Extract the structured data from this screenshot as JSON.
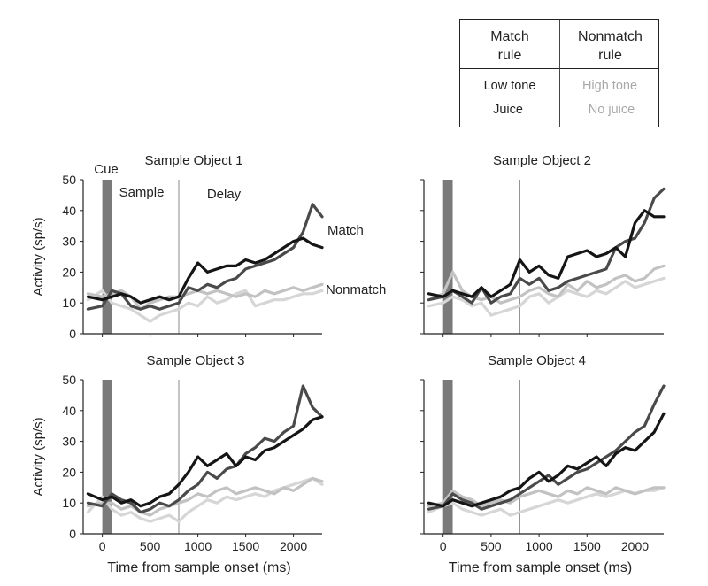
{
  "legend": {
    "headers": [
      [
        "Match",
        "rule"
      ],
      [
        "Nonmatch",
        "rule"
      ]
    ],
    "rows": [
      {
        "match": "Low tone",
        "nonmatch": "High tone"
      },
      {
        "match": "Juice",
        "nonmatch": "No juice"
      }
    ]
  },
  "colors": {
    "match_low_tone": "#4a4a4a",
    "match_juice": "#151515",
    "nonmatch_high_tone": "#c2c2c2",
    "nonmatch_no_juice": "#d6d6d6",
    "cue_bar": "#7a7a7a",
    "delay_line": "#888888"
  },
  "chart_data": {
    "type": "line",
    "xlabel": "Time from sample onset (ms)",
    "ylabel": "Activity (sp/s)",
    "xlim": [
      -200,
      2300
    ],
    "ylim": [
      0,
      50
    ],
    "xticks": [
      0,
      500,
      1000,
      1500,
      2000
    ],
    "yticks": [
      0,
      10,
      20,
      30,
      40,
      50
    ],
    "cue_interval_ms": [
      0,
      100
    ],
    "delay_onset_ms": 800,
    "epoch_labels": [
      "Cue",
      "Sample",
      "Delay"
    ],
    "series_labels": {
      "match": "Match",
      "nonmatch": "Nonmatch"
    },
    "x": [
      -150,
      0,
      100,
      200,
      300,
      400,
      500,
      600,
      700,
      800,
      900,
      1000,
      1100,
      1200,
      1300,
      1400,
      1500,
      1600,
      1700,
      1800,
      1900,
      2000,
      2100,
      2200,
      2300
    ],
    "panels": [
      {
        "title": "Sample Object 1",
        "series": [
          {
            "style": "match_juice",
            "values": [
              12,
              11,
              12,
              13,
              12,
              10,
              11,
              12,
              11,
              12,
              18,
              23,
              20,
              21,
              22,
              22,
              24,
              23,
              24,
              26,
              28,
              30,
              31,
              29,
              28
            ]
          },
          {
            "style": "match_low_tone",
            "values": [
              8,
              9,
              14,
              13,
              9,
              8,
              9,
              8,
              9,
              10,
              15,
              14,
              16,
              15,
              17,
              18,
              21,
              22,
              23,
              24,
              26,
              28,
              33,
              42,
              38
            ]
          },
          {
            "style": "nonmatch_high_tone",
            "values": [
              13,
              12,
              13,
              14,
              12,
              8,
              10,
              11,
              12,
              12,
              13,
              14,
              13,
              14,
              13,
              12,
              13,
              12,
              14,
              13,
              14,
              15,
              14,
              15,
              16
            ]
          },
          {
            "style": "nonmatch_no_juice",
            "values": [
              11,
              14,
              10,
              9,
              8,
              6,
              4,
              6,
              7,
              8,
              10,
              9,
              12,
              10,
              11,
              13,
              14,
              9,
              10,
              11,
              11,
              12,
              13,
              13,
              14
            ]
          }
        ]
      },
      {
        "title": "Sample Object 2",
        "series": [
          {
            "style": "match_juice",
            "values": [
              13,
              12,
              14,
              13,
              12,
              15,
              12,
              14,
              16,
              24,
              20,
              22,
              19,
              18,
              25,
              26,
              27,
              25,
              26,
              28,
              25,
              36,
              40,
              38,
              38
            ]
          },
          {
            "style": "match_low_tone",
            "values": [
              11,
              12,
              14,
              12,
              10,
              15,
              10,
              12,
              13,
              18,
              16,
              18,
              14,
              15,
              17,
              18,
              19,
              20,
              21,
              28,
              30,
              31,
              36,
              44,
              47
            ]
          },
          {
            "style": "nonmatch_high_tone",
            "values": [
              11,
              13,
              20,
              14,
              12,
              11,
              12,
              10,
              11,
              12,
              14,
              15,
              13,
              12,
              16,
              14,
              17,
              15,
              16,
              18,
              19,
              17,
              18,
              21,
              22
            ]
          },
          {
            "style": "nonmatch_no_juice",
            "values": [
              9,
              10,
              12,
              11,
              9,
              10,
              6,
              7,
              8,
              9,
              12,
              13,
              10,
              12,
              14,
              13,
              12,
              14,
              13,
              15,
              17,
              15,
              16,
              17,
              18
            ]
          }
        ]
      },
      {
        "title": "Sample Object 3",
        "series": [
          {
            "style": "match_juice",
            "values": [
              13,
              11,
              12,
              10,
              11,
              9,
              10,
              12,
              13,
              16,
              20,
              25,
              22,
              24,
              26,
              22,
              25,
              24,
              27,
              28,
              30,
              32,
              34,
              37,
              38
            ]
          },
          {
            "style": "match_low_tone",
            "values": [
              10,
              9,
              13,
              11,
              10,
              7,
              8,
              10,
              9,
              11,
              14,
              16,
              20,
              18,
              21,
              22,
              26,
              28,
              31,
              30,
              33,
              35,
              48,
              41,
              38
            ]
          },
          {
            "style": "nonmatch_high_tone",
            "values": [
              9,
              10,
              10,
              8,
              9,
              7,
              6,
              8,
              9,
              10,
              11,
              13,
              12,
              14,
              15,
              13,
              14,
              15,
              14,
              13,
              15,
              14,
              16,
              18,
              17
            ]
          },
          {
            "style": "nonmatch_no_juice",
            "values": [
              7,
              12,
              8,
              6,
              7,
              5,
              4,
              5,
              6,
              4,
              7,
              9,
              11,
              10,
              12,
              11,
              12,
              13,
              12,
              14,
              15,
              16,
              17,
              18,
              16
            ]
          }
        ]
      },
      {
        "title": "Sample Object 4",
        "series": [
          {
            "style": "match_juice",
            "values": [
              10,
              9,
              11,
              10,
              9,
              10,
              11,
              12,
              14,
              15,
              18,
              20,
              17,
              19,
              22,
              21,
              23,
              25,
              22,
              26,
              28,
              27,
              30,
              33,
              39
            ]
          },
          {
            "style": "match_low_tone",
            "values": [
              8,
              9,
              13,
              11,
              10,
              8,
              9,
              10,
              11,
              13,
              15,
              17,
              19,
              16,
              18,
              20,
              21,
              23,
              25,
              27,
              30,
              33,
              35,
              42,
              48
            ]
          },
          {
            "style": "nonmatch_high_tone",
            "values": [
              9,
              10,
              14,
              12,
              11,
              9,
              10,
              11,
              10,
              12,
              13,
              14,
              13,
              12,
              14,
              13,
              15,
              14,
              13,
              15,
              14,
              13,
              14,
              15,
              15
            ]
          },
          {
            "style": "nonmatch_no_juice",
            "values": [
              7,
              9,
              10,
              8,
              7,
              6,
              7,
              8,
              6,
              7,
              8,
              9,
              10,
              11,
              10,
              11,
              12,
              13,
              12,
              13,
              14,
              13,
              14,
              14,
              15
            ]
          }
        ]
      }
    ]
  }
}
